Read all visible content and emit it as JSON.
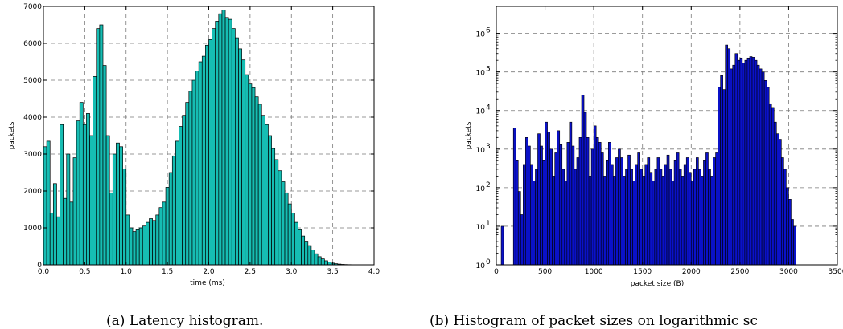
{
  "chart_data": [
    {
      "type": "bar",
      "title": "",
      "xlabel": "time (ms)",
      "ylabel": "packets",
      "caption": "(a) Latency histogram.",
      "xlim": [
        0.0,
        4.0
      ],
      "ylim": [
        0,
        7000
      ],
      "xticks": [
        "0.0",
        "0.5",
        "1.0",
        "1.5",
        "2.0",
        "2.5",
        "3.0",
        "3.5",
        "4.0"
      ],
      "yticks": [
        "0",
        "1000",
        "2000",
        "3000",
        "4000",
        "5000",
        "6000",
        "7000"
      ],
      "grid": true,
      "color": "#16bdb3",
      "bin_width": 0.04,
      "x": [
        0.0,
        0.04,
        0.08,
        0.12,
        0.16,
        0.2,
        0.24,
        0.28,
        0.32,
        0.36,
        0.4,
        0.44,
        0.48,
        0.52,
        0.56,
        0.6,
        0.64,
        0.68,
        0.72,
        0.76,
        0.8,
        0.84,
        0.88,
        0.92,
        0.96,
        1.0,
        1.04,
        1.08,
        1.12,
        1.16,
        1.2,
        1.24,
        1.28,
        1.32,
        1.36,
        1.4,
        1.44,
        1.48,
        1.52,
        1.56,
        1.6,
        1.64,
        1.68,
        1.72,
        1.76,
        1.8,
        1.84,
        1.88,
        1.92,
        1.96,
        2.0,
        2.04,
        2.08,
        2.12,
        2.16,
        2.2,
        2.24,
        2.28,
        2.32,
        2.36,
        2.4,
        2.44,
        2.48,
        2.52,
        2.56,
        2.6,
        2.64,
        2.68,
        2.72,
        2.76,
        2.8,
        2.84,
        2.88,
        2.92,
        2.96,
        3.0,
        3.04,
        3.08,
        3.12,
        3.16,
        3.2,
        3.24,
        3.28,
        3.32,
        3.36,
        3.4,
        3.44,
        3.48,
        3.52,
        3.56,
        3.6,
        3.64,
        3.68,
        3.72,
        3.76,
        3.8,
        3.84,
        3.88,
        3.92,
        3.96
      ],
      "values": [
        3200,
        3350,
        1400,
        2200,
        1300,
        3800,
        1800,
        3000,
        1700,
        2900,
        3900,
        4400,
        3800,
        4100,
        3500,
        5100,
        6400,
        6500,
        5400,
        3500,
        1950,
        3000,
        3300,
        3200,
        2600,
        1350,
        1000,
        900,
        950,
        1000,
        1050,
        1150,
        1250,
        1200,
        1350,
        1550,
        1700,
        2100,
        2500,
        2950,
        3350,
        3750,
        4050,
        4400,
        4700,
        5000,
        5250,
        5500,
        5650,
        5950,
        6100,
        6400,
        6600,
        6800,
        6900,
        6700,
        6650,
        6400,
        6150,
        5850,
        5550,
        5150,
        4900,
        4800,
        4550,
        4350,
        4050,
        3800,
        3500,
        3150,
        2850,
        2550,
        2250,
        1950,
        1650,
        1400,
        1150,
        950,
        780,
        640,
        520,
        400,
        300,
        220,
        160,
        110,
        75,
        45,
        30,
        20,
        12,
        8,
        5,
        3,
        2,
        1,
        0,
        0,
        0,
        0
      ]
    },
    {
      "type": "bar",
      "title": "",
      "xlabel": "packet size (B)",
      "ylabel": "packets",
      "caption": "(b) Histogram of packet sizes on logarithmic sc",
      "log_y": true,
      "xlim": [
        0,
        3500
      ],
      "ylim": [
        1,
        5000000
      ],
      "xticks": [
        "0",
        "500",
        "1000",
        "1500",
        "2000",
        "2500",
        "3000",
        "3500"
      ],
      "yticks": [
        {
          "base": "10",
          "exp": "0"
        },
        {
          "base": "10",
          "exp": "1"
        },
        {
          "base": "10",
          "exp": "2"
        },
        {
          "base": "10",
          "exp": "3"
        },
        {
          "base": "10",
          "exp": "4"
        },
        {
          "base": "10",
          "exp": "5"
        },
        {
          "base": "10",
          "exp": "6"
        }
      ],
      "grid": true,
      "color": "#0a11c8",
      "bin_width": 25,
      "x": [
        50,
        175,
        200,
        225,
        250,
        275,
        300,
        325,
        350,
        375,
        400,
        425,
        450,
        475,
        500,
        525,
        550,
        575,
        600,
        625,
        650,
        675,
        700,
        725,
        750,
        775,
        800,
        825,
        850,
        875,
        900,
        925,
        950,
        975,
        1000,
        1025,
        1050,
        1075,
        1100,
        1125,
        1150,
        1175,
        1200,
        1225,
        1250,
        1275,
        1300,
        1325,
        1350,
        1375,
        1400,
        1425,
        1450,
        1475,
        1500,
        1525,
        1550,
        1575,
        1600,
        1625,
        1650,
        1675,
        1700,
        1725,
        1750,
        1775,
        1800,
        1825,
        1850,
        1875,
        1900,
        1925,
        1950,
        1975,
        2000,
        2025,
        2050,
        2075,
        2100,
        2125,
        2150,
        2175,
        2200,
        2225,
        2250,
        2275,
        2300,
        2325,
        2350,
        2375,
        2400,
        2425,
        2450,
        2475,
        2500,
        2525,
        2550,
        2575,
        2600,
        2625,
        2650,
        2675,
        2700,
        2725,
        2750,
        2775,
        2800,
        2825,
        2850,
        2875,
        2900,
        2925,
        2950,
        2975,
        3000,
        3025,
        3050
      ],
      "values": [
        10,
        3500,
        500,
        80,
        20,
        400,
        2000,
        1200,
        400,
        150,
        300,
        2500,
        1200,
        500,
        5000,
        2800,
        1000,
        200,
        800,
        3000,
        1300,
        300,
        150,
        1500,
        5000,
        1200,
        300,
        600,
        2000,
        25000,
        9000,
        2000,
        200,
        1000,
        4000,
        2000,
        1500,
        800,
        200,
        500,
        1500,
        400,
        200,
        600,
        1000,
        600,
        200,
        300,
        700,
        300,
        150,
        400,
        800,
        300,
        200,
        400,
        600,
        250,
        150,
        300,
        600,
        300,
        200,
        400,
        700,
        300,
        150,
        500,
        800,
        300,
        200,
        400,
        600,
        250,
        150,
        300,
        600,
        300,
        200,
        500,
        800,
        300,
        200,
        600,
        800,
        40000,
        80000,
        35000,
        500000,
        400000,
        120000,
        150000,
        300000,
        200000,
        230000,
        170000,
        200000,
        230000,
        250000,
        240000,
        200000,
        150000,
        120000,
        100000,
        60000,
        40000,
        15000,
        12000,
        5000,
        2500,
        1800,
        600,
        300,
        100,
        50,
        15,
        10
      ]
    }
  ]
}
